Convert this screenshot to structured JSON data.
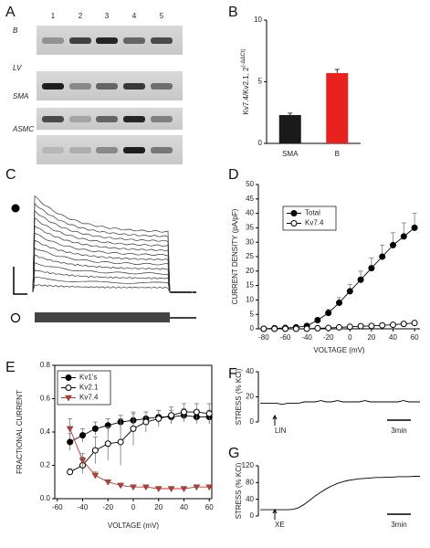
{
  "panel_labels": [
    "A",
    "B",
    "C",
    "D",
    "E",
    "F",
    "G"
  ],
  "gel": {
    "lanes": [
      "1",
      "2",
      "3",
      "4",
      "5"
    ],
    "rows": [
      "B",
      "LV",
      "SMA",
      "ASMC"
    ]
  },
  "chart_data": [
    {
      "type": "bar",
      "ylabel": "Kv7.4/Kv2.1, 2",
      "ylabel_superscript": "(-ΔΔCt)",
      "categories": [
        "SMA",
        "B"
      ],
      "values": [
        2.3,
        5.7
      ],
      "errors": [
        0.15,
        0.3
      ],
      "error_direction": "up",
      "colors": [
        "#1a1a1a",
        "#e8231f"
      ],
      "ylim": [
        0,
        10
      ],
      "yticks": [
        0,
        5,
        10
      ]
    },
    {
      "type": "line",
      "xlabel": "VOLTAGE (mV)",
      "ylabel": "CURRENT DENSITY (pA/pF)",
      "x": [
        -80,
        -70,
        -60,
        -50,
        -40,
        -30,
        -20,
        -10,
        0,
        10,
        20,
        30,
        40,
        50,
        60
      ],
      "series": [
        {
          "name": "Total",
          "color": "#000000",
          "marker": "filled-circle",
          "values": [
            0,
            0.2,
            0.3,
            0.5,
            1,
            3,
            5.5,
            9,
            13,
            17,
            21,
            25,
            29,
            32,
            35
          ],
          "errors": [
            0,
            0,
            0,
            0.2,
            0.4,
            0.8,
            1.2,
            1.8,
            2.4,
            3,
            3.5,
            4,
            4.3,
            4.7,
            5
          ]
        },
        {
          "name": "Kv7.4",
          "color": "#000000",
          "marker": "open-circle",
          "values": [
            0,
            0,
            0,
            0,
            0,
            0.2,
            0.3,
            0.5,
            0.7,
            0.9,
            1,
            1.2,
            1.4,
            1.7,
            2
          ]
        }
      ],
      "error_direction": "up",
      "legend": "upper left",
      "xlim": [
        -85,
        65
      ],
      "xticks": [
        -80,
        -60,
        -40,
        -20,
        0,
        20,
        40,
        60
      ],
      "ylim": [
        0,
        50
      ],
      "yticks": [
        0,
        5,
        10,
        15,
        20,
        25,
        30,
        35,
        40,
        45,
        50
      ]
    },
    {
      "type": "line",
      "xlabel": "VOLTAGE (mV)",
      "ylabel": "FRACTIONAL CURRENT",
      "x": [
        -50,
        -40,
        -30,
        -20,
        -10,
        0,
        10,
        20,
        30,
        40,
        50,
        60
      ],
      "series": [
        {
          "name": "Kv1's",
          "color": "#000000",
          "marker": "filled-circle",
          "values": [
            0.34,
            0.38,
            0.42,
            0.44,
            0.46,
            0.47,
            0.48,
            0.49,
            0.49,
            0.5,
            0.49,
            0.49
          ],
          "errors": [
            0.05,
            0.04,
            0.04,
            0.04,
            0.04,
            0.04,
            0.04,
            0.04,
            0.04,
            0.04,
            0.04,
            0.04
          ]
        },
        {
          "name": "Kv2.1",
          "color": "#000000",
          "marker": "open-circle",
          "values": [
            0.16,
            0.2,
            0.29,
            0.33,
            0.34,
            0.42,
            0.46,
            0.48,
            0.5,
            0.52,
            0.52,
            0.51
          ],
          "errors": [
            0.02,
            0.05,
            0.08,
            0.1,
            0.14,
            0.1,
            0.06,
            0.05,
            0.05,
            0.05,
            0.05,
            0.06
          ]
        },
        {
          "name": "Kv7.4",
          "color": "#c0392b",
          "marker": "triangle-down",
          "values": [
            0.42,
            0.23,
            0.14,
            0.1,
            0.08,
            0.07,
            0.07,
            0.06,
            0.06,
            0.06,
            0.07,
            0.07
          ],
          "errors": [
            0.06,
            0.04,
            0.02,
            0.01,
            0.01,
            0.01,
            0.01,
            0.01,
            0.01,
            0.01,
            0.01,
            0.01
          ]
        }
      ],
      "error_direction": "both",
      "legend": "upper left",
      "frame": true,
      "xlim": [
        -62,
        62
      ],
      "xticks": [
        -60,
        -40,
        -20,
        0,
        20,
        40,
        60
      ],
      "ylim": [
        0,
        0.8
      ],
      "yticks": [
        {
          "value": 0,
          "label": "0.0"
        },
        0.2,
        0.4,
        0.6,
        0.8
      ]
    },
    {
      "type": "trace",
      "ylabel": "STRESS (% KCl)",
      "annotation": "LIN",
      "scalebar": "3min",
      "values": [
        15,
        15,
        15,
        15,
        14,
        15,
        15,
        15,
        16,
        16,
        16,
        17,
        16,
        16,
        17,
        16,
        16,
        16,
        16,
        17,
        16,
        16,
        16,
        16,
        16,
        16,
        17,
        16,
        16,
        16
      ],
      "color": "#000000",
      "ylim": [
        0,
        40
      ],
      "yticks": [
        0,
        20,
        40
      ]
    },
    {
      "type": "trace",
      "ylabel": "STRESS (% KCl)",
      "annotation": "XE",
      "scalebar": "3min",
      "values": [
        15,
        15,
        15,
        15,
        15,
        15,
        16,
        20,
        28,
        38,
        48,
        57,
        65,
        72,
        78,
        82,
        85,
        87,
        89,
        90,
        91,
        92,
        92,
        93,
        93,
        94,
        94,
        94,
        95,
        95
      ],
      "color": "#000000",
      "ylim": [
        0,
        120
      ],
      "yticks": [
        0,
        40,
        80,
        120
      ]
    }
  ]
}
